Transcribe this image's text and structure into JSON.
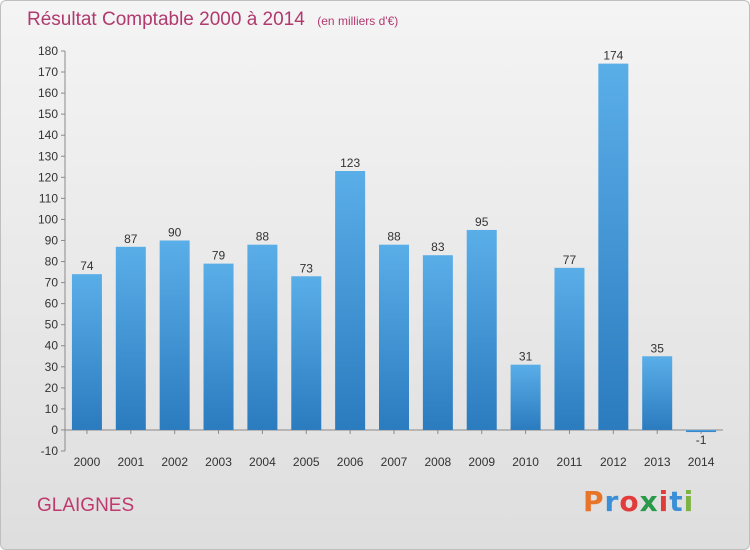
{
  "header": {
    "title": "Résultat Comptable 2000 à 2014",
    "subtitle": "(en milliers d'€)"
  },
  "footer": {
    "commune": "GLAIGNES",
    "logo_text": "Proxiti",
    "logo_colors": [
      "#e8742a",
      "#3b8fd6",
      "#e23b3b",
      "#2a9a4a",
      "#e23b3b",
      "#3b8fd6",
      "#7cb342"
    ]
  },
  "colors": {
    "bar_top": "#5aaee8",
    "bar_bottom": "#2b7bbf",
    "title": "#b03a6e"
  },
  "chart_data": {
    "type": "bar",
    "title": "Résultat Comptable 2000 à 2014",
    "subtitle": "(en milliers d'€)",
    "categories": [
      "2000",
      "2001",
      "2002",
      "2003",
      "2004",
      "2005",
      "2006",
      "2007",
      "2008",
      "2009",
      "2010",
      "2011",
      "2012",
      "2013",
      "2014"
    ],
    "values": [
      74,
      87,
      90,
      79,
      88,
      73,
      123,
      88,
      83,
      95,
      31,
      77,
      174,
      35,
      -1
    ],
    "ylim": [
      -10,
      180
    ],
    "yticks": [
      -10,
      0,
      10,
      20,
      30,
      40,
      50,
      60,
      70,
      80,
      90,
      100,
      110,
      120,
      130,
      140,
      150,
      160,
      170,
      180
    ],
    "grid": false,
    "data_labels": true
  }
}
